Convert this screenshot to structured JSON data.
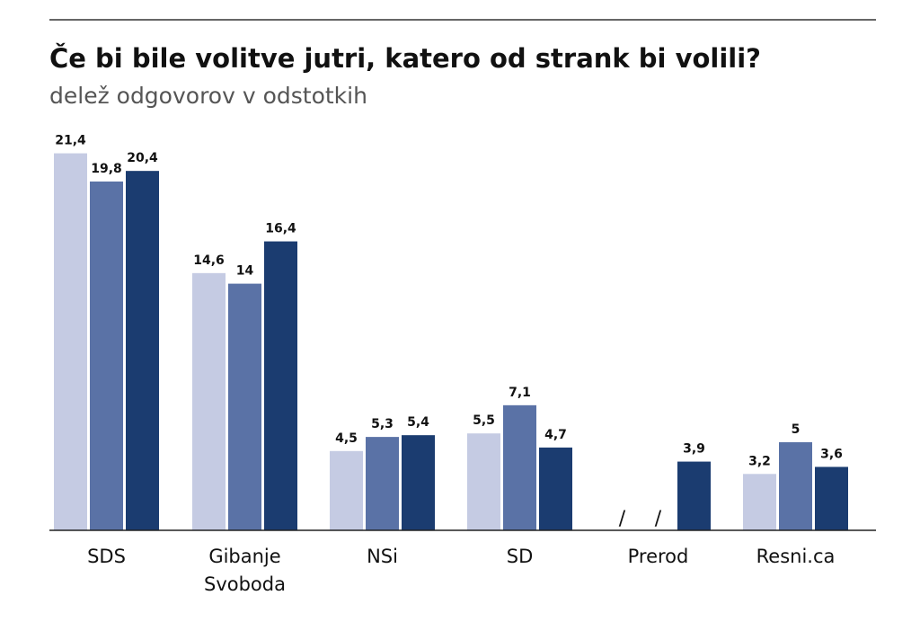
{
  "chart_data": {
    "type": "bar",
    "title": "Če bi bile volitve jutri, katero od strank bi volili?",
    "subtitle": "delež odgovorov v odstotkih",
    "xlabel": "",
    "ylabel": "",
    "ylim": [
      0,
      22
    ],
    "grid": false,
    "legend": "none",
    "categories": [
      [
        "SDS"
      ],
      [
        "Gibanje",
        "Svoboda"
      ],
      [
        "NSi"
      ],
      [
        "SD"
      ],
      [
        "Prerod"
      ],
      [
        "Resni.ca"
      ]
    ],
    "series": [
      {
        "color": "#c5cbe3",
        "values": [
          21.4,
          14.6,
          4.5,
          5.5,
          null,
          3.2
        ],
        "labels": [
          "21,4",
          "14,6",
          "4,5",
          "5,5",
          "/",
          "3,2"
        ]
      },
      {
        "color": "#5a72a6",
        "values": [
          19.8,
          14,
          5.3,
          7.1,
          null,
          5
        ],
        "labels": [
          "19,8",
          "14",
          "5,3",
          "7,1",
          "/",
          "5"
        ]
      },
      {
        "color": "#1b3c70",
        "values": [
          20.4,
          16.4,
          5.4,
          4.7,
          3.9,
          3.6
        ],
        "labels": [
          "20,4",
          "16,4",
          "5,4",
          "4,7",
          "3,9",
          "3,6"
        ]
      }
    ]
  }
}
